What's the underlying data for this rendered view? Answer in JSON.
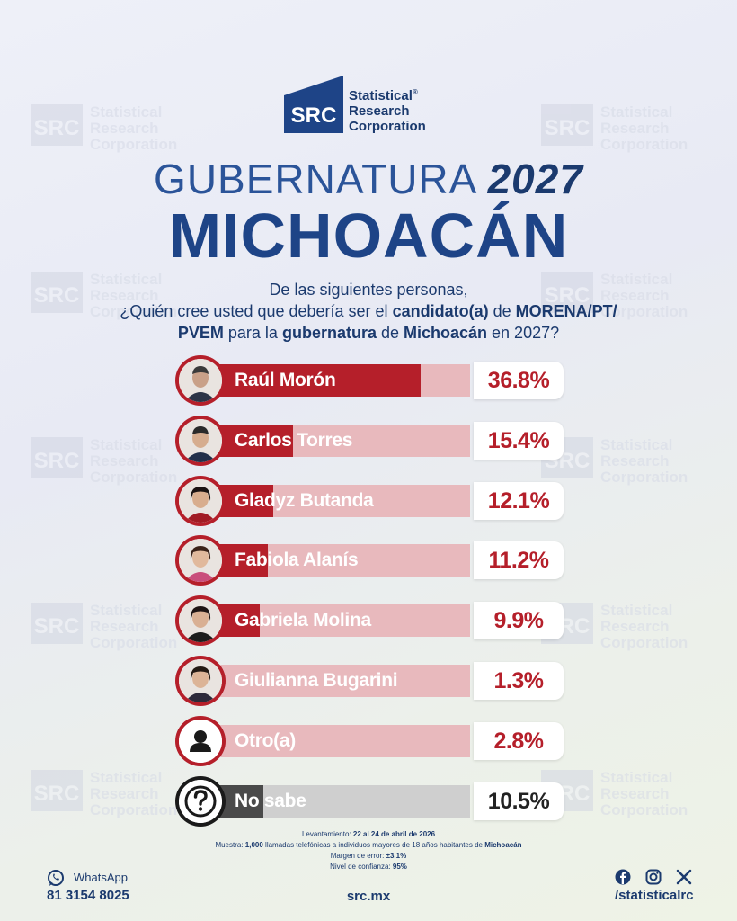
{
  "watermark": {
    "logo": "SRC",
    "line1": "Statistical",
    "line2": "Research",
    "line3": "Corporation"
  },
  "logo": {
    "mark": "SRC",
    "line1": "Statistical",
    "registered": "®",
    "line2": "Research",
    "line3": "Corporation"
  },
  "title": {
    "part1": "GUBERNATURA",
    "year": "2027",
    "state": "MICHOACÁN"
  },
  "question": {
    "line1": "De las siguientes personas,",
    "l2a": "¿Quién cree usted que debería ser el ",
    "l2b": "candidato(a)",
    "l2c": " de ",
    "l2d": "MORENA/PT/",
    "l3a": "PVEM",
    "l3b": " para la ",
    "l3c": "gubernatura",
    "l3d": " de ",
    "l3e": "Michoacán",
    "l3f": " en 2027?"
  },
  "chart_data": {
    "type": "bar",
    "categories": [
      "Raúl Morón",
      "Carlos Torres",
      "Gladyz Butanda",
      "Fabiola Alanís",
      "Gabriela Molina",
      "Giulianna Bugarini",
      "Otro(a)",
      "No sabe"
    ],
    "values": [
      36.8,
      15.4,
      12.1,
      11.2,
      9.9,
      1.3,
      2.8,
      10.5
    ],
    "labels": [
      "36.8%",
      "15.4%",
      "12.1%",
      "11.2%",
      "9.9%",
      "1.3%",
      "2.8%",
      "10.5%"
    ],
    "ylim": [
      0,
      45
    ],
    "colors": {
      "bar": "#b51f2a",
      "track": "#e8b9bd",
      "neutral_bar": "#4a4a4a",
      "neutral_track": "#cfcfcf"
    }
  },
  "footer": {
    "fieldwork_label": "Levantamiento:",
    "fieldwork_value": "22 al 24 de abril de 2026",
    "sample_label": "Muestra:",
    "sample_n": "1,000",
    "sample_text": " llamadas telefónicas a individuos mayores de 18 años habitantes de ",
    "sample_place": "Michoacán",
    "error_label": "Margen de error:",
    "error_value": "±3.1%",
    "confidence_label": "Nivel de confianza:",
    "confidence_value": "95%",
    "whatsapp_label": "WhatsApp",
    "phone": "81 3154 8025",
    "website": "src.mx",
    "handle": "/statisticalrc"
  }
}
